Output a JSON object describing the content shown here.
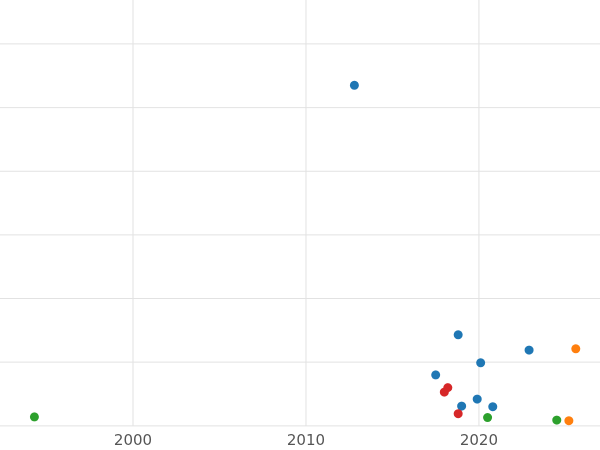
{
  "chart_data": {
    "type": "scatter",
    "title": "",
    "xlabel": "",
    "ylabel": "",
    "grid": true,
    "legend": "none",
    "xlim": [
      1992.31,
      2027.0
    ],
    "ylim": [
      -0.38,
      6.69
    ],
    "x_ticks": [
      2000,
      2010,
      2020
    ],
    "x_tick_labels": [
      "2000",
      "2010",
      "2020"
    ],
    "y_gridlines": [
      0,
      1,
      2,
      3,
      4,
      5,
      6
    ],
    "series": [
      {
        "name": "blue",
        "color": "#1f77b4",
        "points": [
          {
            "x": 2012.8,
            "y": 5.35
          },
          {
            "x": 2017.5,
            "y": 0.8
          },
          {
            "x": 2018.8,
            "y": 1.43
          },
          {
            "x": 2019.0,
            "y": 0.31
          },
          {
            "x": 2019.9,
            "y": 0.42
          },
          {
            "x": 2020.1,
            "y": 0.99
          },
          {
            "x": 2020.8,
            "y": 0.3
          },
          {
            "x": 2022.9,
            "y": 1.19
          }
        ]
      },
      {
        "name": "red",
        "color": "#d62728",
        "points": [
          {
            "x": 2018.0,
            "y": 0.53
          },
          {
            "x": 2018.2,
            "y": 0.6
          },
          {
            "x": 2018.8,
            "y": 0.19
          }
        ]
      },
      {
        "name": "green",
        "color": "#2ca02c",
        "points": [
          {
            "x": 1994.3,
            "y": 0.14
          },
          {
            "x": 2020.5,
            "y": 0.13
          },
          {
            "x": 2024.5,
            "y": 0.09
          }
        ]
      },
      {
        "name": "orange",
        "color": "#ff7f0e",
        "points": [
          {
            "x": 2025.2,
            "y": 0.08
          },
          {
            "x": 2025.6,
            "y": 1.21
          }
        ]
      }
    ]
  },
  "styles": {
    "background": "#ffffff",
    "grid_color": "#e2e2e2",
    "tick_label_color": "#555555",
    "point_radius": 4.5,
    "grid_width": 1
  }
}
